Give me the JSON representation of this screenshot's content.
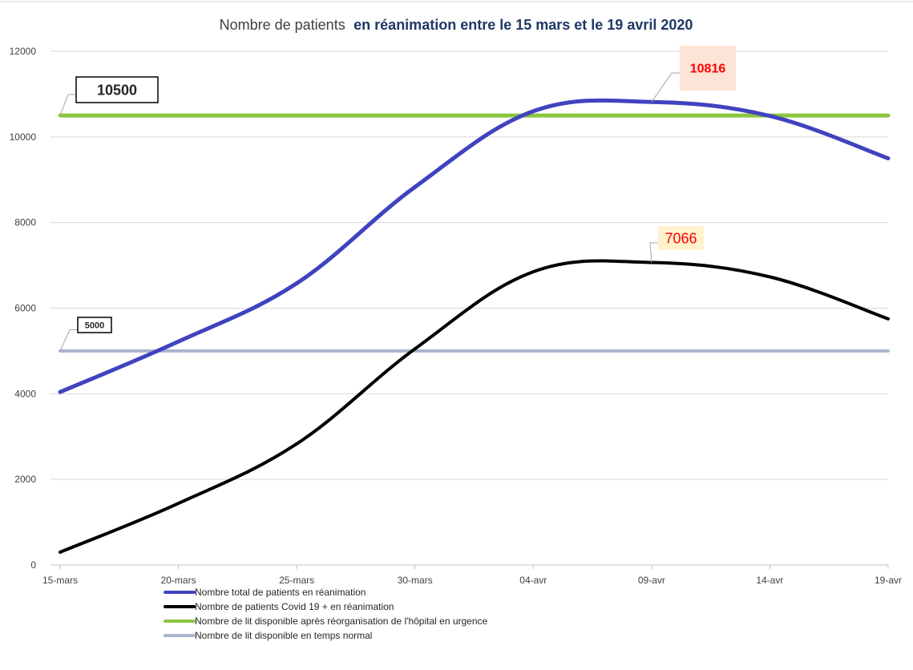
{
  "chart_data": {
    "type": "line",
    "title_prefix": "Nombre de patients",
    "title_suffix": "en réanimation entre le 15 mars et le 19 avril 2020",
    "categories": [
      "15-mars",
      "20-mars",
      "25-mars",
      "30-mars",
      "04-avr",
      "09-avr",
      "14-avr",
      "19-avr"
    ],
    "y_ticks": [
      "0",
      "2000",
      "4000",
      "6000",
      "8000",
      "10000",
      "12000"
    ],
    "ylim": [
      0,
      12000
    ],
    "series": [
      {
        "name": "Nombre total de patients en réanimation",
        "color": "#4043bf",
        "values": [
          4040,
          5220,
          6580,
          8830,
          10600,
          10816,
          10490,
          9500
        ]
      },
      {
        "name": "Nombre de patients Covid 19 + en réanimation",
        "color": "#000000",
        "values": [
          300,
          1440,
          2830,
          5050,
          6850,
          7066,
          6730,
          5750
        ]
      },
      {
        "name": "Nombre de lit disponible après réorganisation de l'hôpital en urgence",
        "color": "#8cc63f",
        "values": [
          10500,
          10500,
          10500,
          10500,
          10500,
          10500,
          10500,
          10500
        ]
      },
      {
        "name": "Nombre de lit disponible en temps normal",
        "color": "#a9b4cc",
        "values": [
          5000,
          5000,
          5000,
          5000,
          5000,
          5000,
          5000,
          5000
        ]
      }
    ],
    "annotations": {
      "peak_total": {
        "text": "10816",
        "color": "#ff0000",
        "background": "#fce4d6"
      },
      "peak_covid": {
        "text": "7066",
        "color": "#ff0000",
        "background": "#fff2cc"
      },
      "beds_urgence": {
        "text": "10500",
        "color": "#262626",
        "background": "#ffffff"
      },
      "beds_normal": {
        "text": "5000",
        "color": "#262626",
        "background": "#ffffff"
      }
    }
  }
}
